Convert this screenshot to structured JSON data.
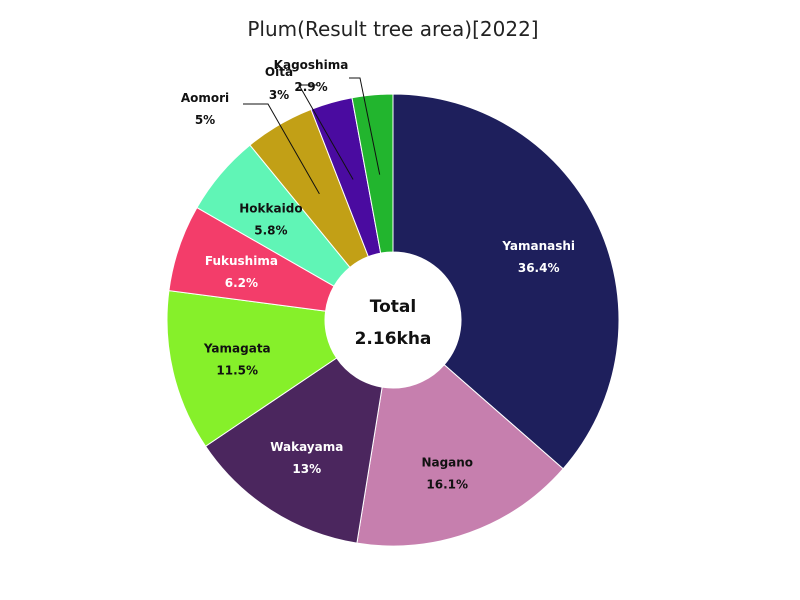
{
  "chart_data": {
    "type": "pie",
    "title": "Plum(Result tree area)[2022]",
    "center": {
      "label": "Total",
      "value": "2.16kha"
    },
    "slices": [
      {
        "name": "Yamanashi",
        "value": 36.4,
        "label": "36.4%",
        "color": "#1e1f5c",
        "text_color": "#ffffff"
      },
      {
        "name": "Nagano",
        "value": 16.1,
        "label": "16.1%",
        "color": "#c67fae",
        "text_color": "#111111"
      },
      {
        "name": "Wakayama",
        "value": 13,
        "label": "13%",
        "color": "#4b265e",
        "text_color": "#ffffff"
      },
      {
        "name": "Yamagata",
        "value": 11.5,
        "label": "11.5%",
        "color": "#86f02a",
        "text_color": "#111111"
      },
      {
        "name": "Fukushima",
        "value": 6.2,
        "label": "6.2%",
        "color": "#f33d6a",
        "text_color": "#ffffff"
      },
      {
        "name": "Hokkaido",
        "value": 5.8,
        "label": "5.8%",
        "color": "#60f5b6",
        "text_color": "#111111"
      },
      {
        "name": "Aomori",
        "value": 5,
        "label": "5%",
        "color": "#c2a016",
        "text_color": "#111111"
      },
      {
        "name": "Oita",
        "value": 3,
        "label": "3%",
        "color": "#4a0ba0",
        "text_color": "#111111"
      },
      {
        "name": "Kagoshima",
        "value": 2.9,
        "label": "2.9%",
        "color": "#22b52e",
        "text_color": "#111111"
      }
    ]
  }
}
